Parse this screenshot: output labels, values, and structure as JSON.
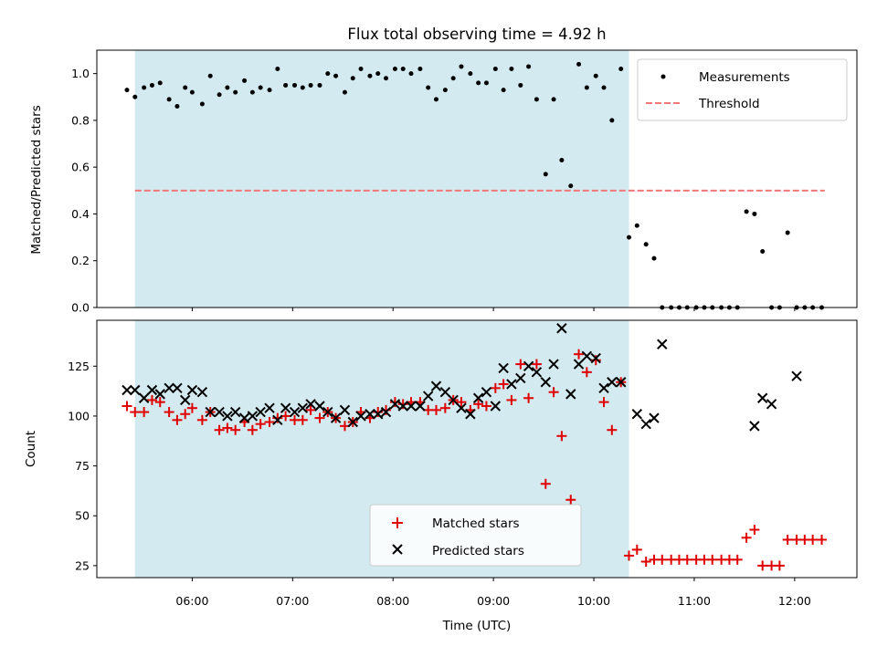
{
  "chart_data": {
    "title": "Flux total observing time = 4.92 h",
    "xlabel": "Time (UTC)",
    "x_units": "hours UTC",
    "xlim": [
      5.05,
      12.62
    ],
    "x_ticks": [
      {
        "value": 6,
        "label": "06:00"
      },
      {
        "value": 7,
        "label": "07:00"
      },
      {
        "value": 8,
        "label": "08:00"
      },
      {
        "value": 9,
        "label": "09:00"
      },
      {
        "value": 10,
        "label": "10:00"
      },
      {
        "value": 11,
        "label": "11:00"
      },
      {
        "value": 12,
        "label": "12:00"
      }
    ],
    "observing_window": {
      "start": 5.43,
      "end": 10.35,
      "color": "#d3eaf0"
    },
    "top_panel": {
      "type": "scatter",
      "ylabel": "Matched/Predicted stars",
      "ylim": [
        0,
        1.1
      ],
      "y_ticks": [
        "0.0",
        "0.2",
        "0.4",
        "0.6",
        "0.8",
        "1.0"
      ],
      "threshold": {
        "value": 0.5,
        "x_start": 5.43,
        "x_end": 12.3,
        "color": "#f07878"
      },
      "legend": [
        {
          "label": "Measurements",
          "marker": "dot"
        },
        {
          "label": "Threshold",
          "marker": "dashed-line"
        }
      ],
      "series": [
        {
          "name": "Measurements",
          "color": "#000000",
          "x": [
            5.35,
            5.43,
            5.52,
            5.6,
            5.68,
            5.77,
            5.85,
            5.93,
            6.0,
            6.1,
            6.18,
            6.27,
            6.35,
            6.43,
            6.52,
            6.6,
            6.68,
            6.77,
            6.85,
            6.93,
            7.02,
            7.1,
            7.18,
            7.27,
            7.35,
            7.43,
            7.52,
            7.6,
            7.68,
            7.77,
            7.85,
            7.93,
            8.02,
            8.1,
            8.18,
            8.27,
            8.35,
            8.43,
            8.52,
            8.6,
            8.68,
            8.77,
            8.85,
            8.93,
            9.02,
            9.1,
            9.18,
            9.27,
            9.35,
            9.43,
            9.52,
            9.6,
            9.68,
            9.77,
            9.85,
            9.93,
            10.02,
            10.1,
            10.18,
            10.27,
            10.35,
            10.43,
            10.52,
            10.6,
            10.68,
            10.77,
            10.85,
            10.93,
            11.02,
            11.1,
            11.18,
            11.27,
            11.35,
            11.43,
            11.52,
            11.6,
            11.68,
            11.77,
            11.85,
            11.93,
            12.02,
            12.1,
            12.18,
            12.27
          ],
          "y": [
            0.93,
            0.9,
            0.94,
            0.95,
            0.96,
            0.89,
            0.86,
            0.94,
            0.92,
            0.87,
            0.99,
            0.91,
            0.94,
            0.92,
            0.97,
            0.92,
            0.94,
            0.93,
            1.02,
            0.95,
            0.95,
            0.94,
            0.95,
            0.95,
            1.0,
            0.99,
            0.92,
            0.98,
            1.02,
            0.99,
            1.0,
            0.98,
            1.02,
            1.02,
            1.0,
            1.02,
            0.94,
            0.89,
            0.93,
            0.98,
            1.03,
            1.0,
            0.96,
            0.96,
            1.02,
            0.93,
            1.02,
            0.95,
            1.03,
            0.89,
            0.57,
            0.89,
            0.63,
            0.52,
            1.04,
            0.94,
            0.99,
            0.94,
            0.8,
            1.02,
            0.3,
            0.35,
            0.27,
            0.21,
            0.0,
            0.0,
            0.0,
            0.0,
            0.0,
            0.0,
            0.0,
            0.0,
            0.0,
            0.0,
            0.41,
            0.4,
            0.24,
            0.0,
            0.0,
            0.32,
            0.0,
            0.0,
            0.0,
            0.0
          ]
        }
      ]
    },
    "bottom_panel": {
      "type": "scatter",
      "ylabel": "Count",
      "ylim": [
        19,
        148
      ],
      "y_ticks": [
        "25",
        "50",
        "75",
        "100",
        "125"
      ],
      "legend": [
        {
          "label": "Matched stars",
          "marker": "plus",
          "color": "#e00000"
        },
        {
          "label": "Predicted stars",
          "marker": "x",
          "color": "#000000"
        }
      ],
      "series": [
        {
          "name": "Matched stars",
          "color": "#e00000",
          "x": [
            5.35,
            5.43,
            5.52,
            5.6,
            5.68,
            5.77,
            5.85,
            5.93,
            6.0,
            6.1,
            6.18,
            6.27,
            6.35,
            6.43,
            6.52,
            6.6,
            6.68,
            6.77,
            6.85,
            6.93,
            7.02,
            7.1,
            7.18,
            7.27,
            7.35,
            7.43,
            7.52,
            7.6,
            7.68,
            7.77,
            7.85,
            7.93,
            8.02,
            8.1,
            8.18,
            8.27,
            8.35,
            8.43,
            8.52,
            8.6,
            8.68,
            8.77,
            8.85,
            8.93,
            9.02,
            9.1,
            9.18,
            9.27,
            9.35,
            9.43,
            9.52,
            9.6,
            9.68,
            9.77,
            9.85,
            9.93,
            10.02,
            10.1,
            10.18,
            10.27,
            10.35,
            10.43,
            10.52,
            10.6,
            10.68,
            10.77,
            10.85,
            10.93,
            11.02,
            11.1,
            11.18,
            11.27,
            11.35,
            11.43,
            11.52,
            11.6,
            11.68,
            11.77,
            11.85,
            11.93,
            12.02,
            12.1,
            12.18,
            12.27
          ],
          "y": [
            105,
            102,
            102,
            108,
            107,
            102,
            98,
            101,
            104,
            98,
            102,
            93,
            94,
            93,
            97,
            93,
            96,
            97,
            99,
            100,
            98,
            98,
            103,
            99,
            102,
            99,
            95,
            97,
            102,
            99,
            102,
            103,
            107,
            106,
            107,
            107,
            103,
            103,
            104,
            108,
            107,
            103,
            106,
            105,
            114,
            116,
            108,
            126,
            109,
            126,
            66,
            112,
            90,
            58,
            131,
            122,
            128,
            107,
            93,
            117,
            30,
            33,
            27,
            28,
            28,
            28,
            28,
            28,
            28,
            28,
            28,
            28,
            28,
            28,
            39,
            43,
            25,
            25,
            25,
            38,
            38,
            38,
            38,
            38
          ]
        },
        {
          "name": "Predicted stars",
          "color": "#000000",
          "x": [
            5.35,
            5.43,
            5.52,
            5.6,
            5.68,
            5.77,
            5.85,
            5.93,
            6.0,
            6.1,
            6.18,
            6.27,
            6.35,
            6.43,
            6.52,
            6.6,
            6.68,
            6.77,
            6.85,
            6.93,
            7.02,
            7.1,
            7.18,
            7.27,
            7.35,
            7.43,
            7.52,
            7.6,
            7.68,
            7.77,
            7.85,
            7.93,
            8.02,
            8.1,
            8.18,
            8.27,
            8.35,
            8.43,
            8.52,
            8.6,
            8.68,
            8.77,
            8.85,
            8.93,
            9.02,
            9.1,
            9.18,
            9.27,
            9.35,
            9.43,
            9.52,
            9.6,
            9.68,
            9.77,
            9.85,
            9.93,
            10.02,
            10.1,
            10.18,
            10.27,
            10.43,
            10.52,
            10.6,
            10.68,
            11.6,
            11.68,
            11.77,
            12.02
          ],
          "y": [
            113,
            113,
            109,
            113,
            111,
            114,
            114,
            108,
            113,
            112,
            102,
            102,
            100,
            102,
            99,
            100,
            102,
            104,
            98,
            104,
            102,
            104,
            106,
            105,
            102,
            99,
            103,
            97,
            100,
            101,
            101,
            102,
            106,
            105,
            105,
            105,
            110,
            115,
            112,
            108,
            104,
            101,
            109,
            112,
            105,
            124,
            116,
            119,
            125,
            122,
            117,
            126,
            144,
            111,
            126,
            130,
            129,
            114,
            117,
            117,
            101,
            96,
            99,
            136,
            95,
            109,
            106,
            120
          ]
        }
      ]
    }
  }
}
